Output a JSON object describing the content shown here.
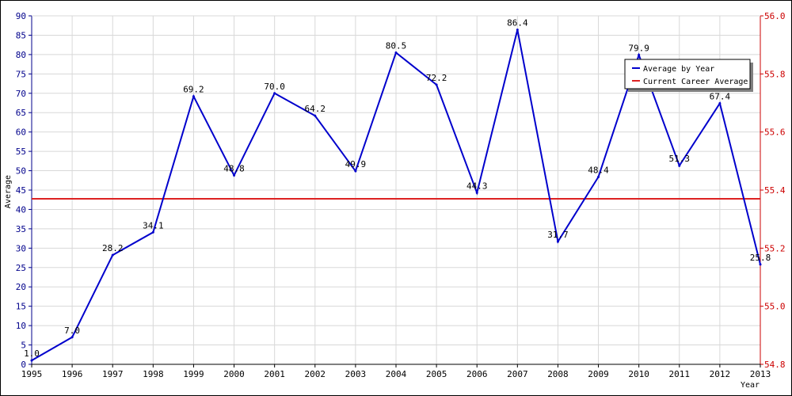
{
  "chart_data": {
    "type": "line",
    "xlabel": "Year",
    "ylabel": "Average",
    "x": [
      1995,
      1996,
      1997,
      1998,
      1999,
      2000,
      2001,
      2002,
      2003,
      2004,
      2005,
      2006,
      2007,
      2008,
      2009,
      2010,
      2011,
      2012,
      2013
    ],
    "series": [
      {
        "name": "Average by Year",
        "color": "#0000cc",
        "axis": "left",
        "values": [
          1.0,
          7.0,
          28.2,
          34.1,
          69.2,
          48.8,
          70.0,
          64.2,
          49.9,
          80.5,
          72.2,
          44.3,
          86.4,
          31.7,
          48.4,
          79.9,
          51.3,
          67.4,
          25.8
        ],
        "labels": [
          "1.0",
          "7.0",
          "28.2",
          "34.1",
          "69.2",
          "48.8",
          "70.0",
          "64.2",
          "49.9",
          "80.5",
          "72.2",
          "44.3",
          "86.4",
          "31.7",
          "48.4",
          "79.9",
          "51.3",
          "67.4",
          "25.8"
        ]
      },
      {
        "name": "Current Career Average",
        "color": "#dd2222",
        "axis": "right",
        "value": 55.37
      }
    ],
    "ylim": [
      0,
      90
    ],
    "yticks": [
      "0",
      "5",
      "10",
      "15",
      "20",
      "25",
      "30",
      "35",
      "40",
      "45",
      "50",
      "55",
      "60",
      "65",
      "70",
      "75",
      "80",
      "85",
      "90"
    ],
    "y2lim": [
      54.8,
      56.0
    ],
    "y2ticks": [
      "54.8",
      "55.0",
      "55.2",
      "55.4",
      "55.6",
      "55.8",
      "56.0"
    ],
    "xticks": [
      "1995",
      "1996",
      "1997",
      "1998",
      "1999",
      "2000",
      "2001",
      "2002",
      "2003",
      "2004",
      "2005",
      "2006",
      "2007",
      "2008",
      "2009",
      "2010",
      "2011",
      "2012",
      "2013"
    ],
    "grid": true,
    "legend_position": "top-right",
    "axis_colors": {
      "left": "#00008b",
      "right": "#cc0000"
    }
  }
}
